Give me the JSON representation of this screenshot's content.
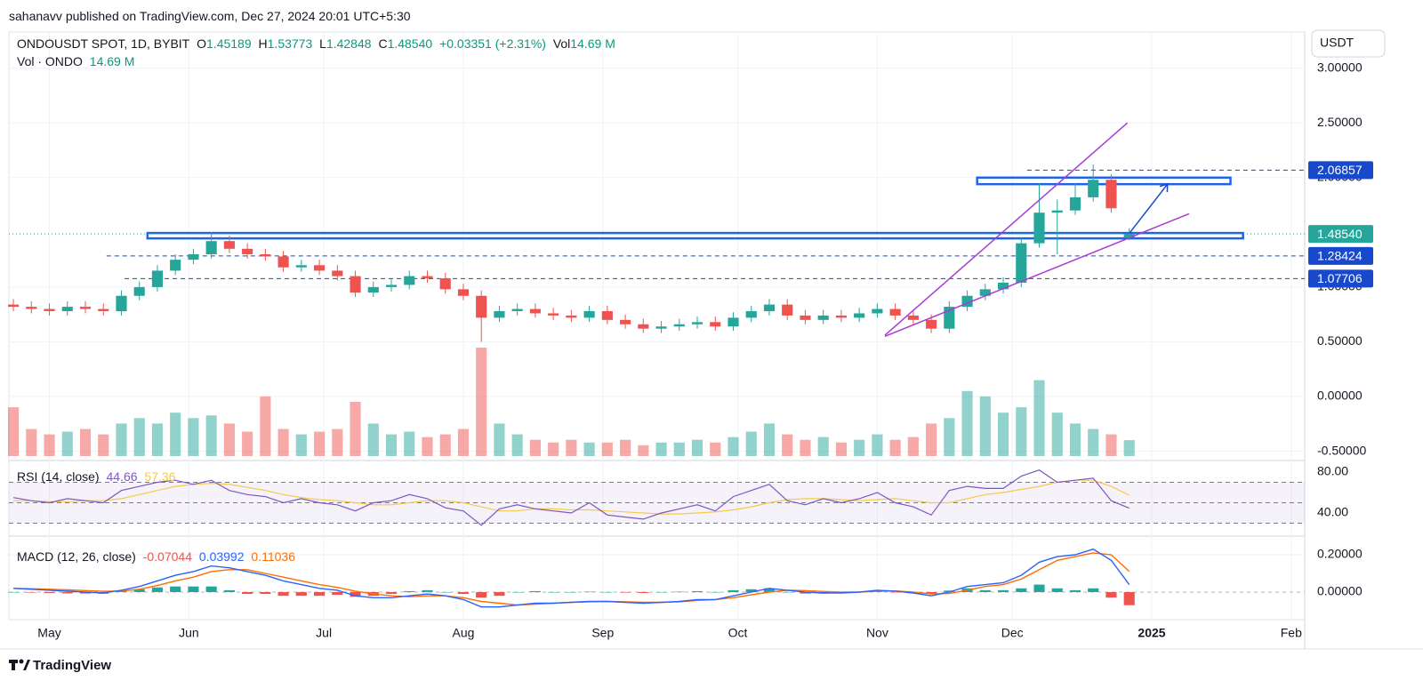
{
  "header": {
    "byline": "sahanavv published on TradingView.com, Dec 27, 2024 20:01 UTC+5:30"
  },
  "footer": {
    "brand": "TradingView"
  },
  "chart_data": {
    "type": "candlestick",
    "symbol": "ONDOUSDT SPOT, 1D, BYBIT",
    "ohlc_labels": [
      "O",
      "H",
      "L",
      "C"
    ],
    "change": "+0.03351 (+2.31%)",
    "vol_short": "Vol",
    "currency": "USDT",
    "up_color": "#26a69a",
    "down_color": "#ef5350",
    "grid": true,
    "xlim": [
      -1,
      287
    ],
    "xticks": [
      {
        "value": 8,
        "label": "May"
      },
      {
        "value": 39,
        "label": "Jun"
      },
      {
        "value": 69,
        "label": "Jul"
      },
      {
        "value": 100,
        "label": "Aug"
      },
      {
        "value": 131,
        "label": "Sep"
      },
      {
        "value": 161,
        "label": "Oct"
      },
      {
        "value": 192,
        "label": "Nov"
      },
      {
        "value": 222,
        "label": "Dec"
      },
      {
        "value": 253,
        "label": "2025"
      },
      {
        "value": 284,
        "label": "Feb"
      }
    ],
    "ylim": [
      -0.56,
      3.33
    ],
    "yticks": [
      {
        "value": 3,
        "label": "3.00000"
      },
      {
        "value": 2.5,
        "label": "2.50000"
      },
      {
        "value": 2,
        "label": "2.00000"
      },
      {
        "value": 1,
        "label": "1.00000"
      },
      {
        "value": 0.5,
        "label": "0.50000"
      },
      {
        "value": 0,
        "label": "0.00000"
      },
      {
        "value": -0.5,
        "label": "-0.50000"
      }
    ],
    "x": [
      0,
      4,
      8,
      12,
      16,
      20,
      24,
      28,
      32,
      36,
      40,
      44,
      48,
      52,
      56,
      60,
      64,
      68,
      72,
      76,
      80,
      84,
      88,
      92,
      96,
      100,
      104,
      108,
      112,
      116,
      120,
      124,
      128,
      132,
      136,
      140,
      144,
      148,
      152,
      156,
      160,
      164,
      168,
      172,
      176,
      180,
      184,
      188,
      192,
      196,
      200,
      204,
      208,
      212,
      216,
      220,
      224,
      228,
      232,
      236,
      240,
      244,
      248
    ],
    "open": [
      0.84,
      0.82,
      0.8,
      0.78,
      0.82,
      0.8,
      0.78,
      0.92,
      1.0,
      1.15,
      1.25,
      1.3,
      1.42,
      1.35,
      1.3,
      1.28,
      1.18,
      1.2,
      1.15,
      1.1,
      0.95,
      1.0,
      1.02,
      1.1,
      1.08,
      0.98,
      0.92,
      0.72,
      0.78,
      0.8,
      0.76,
      0.74,
      0.72,
      0.78,
      0.7,
      0.66,
      0.62,
      0.64,
      0.66,
      0.68,
      0.64,
      0.72,
      0.78,
      0.84,
      0.74,
      0.7,
      0.74,
      0.72,
      0.76,
      0.8,
      0.74,
      0.7,
      0.62,
      0.82,
      0.92,
      0.98,
      1.04,
      1.4,
      1.68,
      1.7,
      1.82,
      1.98,
      1.45189
    ],
    "high": [
      0.89,
      0.87,
      0.85,
      0.87,
      0.87,
      0.85,
      0.97,
      1.05,
      1.2,
      1.3,
      1.35,
      1.5,
      1.47,
      1.4,
      1.35,
      1.33,
      1.25,
      1.25,
      1.2,
      1.15,
      1.05,
      1.07,
      1.15,
      1.15,
      1.13,
      1.03,
      0.97,
      0.83,
      0.85,
      0.85,
      0.81,
      0.79,
      0.83,
      0.83,
      0.75,
      0.71,
      0.69,
      0.71,
      0.73,
      0.73,
      0.77,
      0.83,
      0.89,
      0.89,
      0.79,
      0.79,
      0.79,
      0.81,
      0.85,
      0.85,
      0.79,
      0.75,
      0.87,
      0.97,
      1.03,
      1.09,
      1.45,
      1.95,
      1.8,
      1.95,
      2.12,
      2.03,
      1.53773
    ],
    "low": [
      0.78,
      0.76,
      0.74,
      0.74,
      0.76,
      0.74,
      0.74,
      0.88,
      0.96,
      1.11,
      1.21,
      1.26,
      1.31,
      1.26,
      1.24,
      1.14,
      1.14,
      1.11,
      1.06,
      0.91,
      0.91,
      0.96,
      0.98,
      1.04,
      0.94,
      0.88,
      0.5,
      0.68,
      0.74,
      0.72,
      0.7,
      0.68,
      0.68,
      0.66,
      0.62,
      0.58,
      0.58,
      0.6,
      0.62,
      0.6,
      0.6,
      0.68,
      0.74,
      0.7,
      0.66,
      0.66,
      0.68,
      0.68,
      0.72,
      0.7,
      0.66,
      0.58,
      0.58,
      0.78,
      0.88,
      0.94,
      1.0,
      1.36,
      1.3,
      1.66,
      1.78,
      1.68,
      1.42848
    ],
    "close": [
      0.82,
      0.8,
      0.78,
      0.82,
      0.8,
      0.78,
      0.92,
      1.0,
      1.15,
      1.25,
      1.3,
      1.42,
      1.35,
      1.3,
      1.28,
      1.18,
      1.2,
      1.15,
      1.1,
      0.95,
      1.0,
      1.02,
      1.1,
      1.08,
      0.98,
      0.92,
      0.72,
      0.78,
      0.8,
      0.76,
      0.74,
      0.72,
      0.78,
      0.7,
      0.66,
      0.62,
      0.64,
      0.66,
      0.68,
      0.64,
      0.72,
      0.78,
      0.84,
      0.74,
      0.7,
      0.74,
      0.72,
      0.76,
      0.8,
      0.74,
      0.7,
      0.62,
      0.82,
      0.92,
      0.98,
      1.04,
      1.4,
      1.68,
      1.7,
      1.82,
      1.98,
      1.72,
      1.4854
    ],
    "last_price": {
      "value": 1.4854,
      "label": "1.48540",
      "color": "#26a69a"
    },
    "levels": [
      {
        "value": 2.06857,
        "x": 225.3
      },
      {
        "value": 1.28424,
        "x": 20.7
      },
      {
        "value": 1.07706,
        "x": 24.7
      }
    ],
    "level_color": "#1848cc",
    "zones": [
      {
        "x": [
          29.8,
          273.3
        ],
        "y": [
          1.445,
          1.494
        ]
      },
      {
        "x": [
          214.2,
          270.5
        ],
        "y": [
          1.94,
          2.0
        ]
      }
    ],
    "zone_color": "#1e63f0",
    "trendlines": [
      {
        "x": [
          193.7,
          247.6
        ],
        "y": [
          0.56,
          2.5
        ]
      },
      {
        "x": [
          193.7,
          261.3
        ],
        "y": [
          0.55,
          1.67
        ]
      }
    ],
    "trend_color": "#a93bd6",
    "arrow": {
      "x": [
        248,
        256.5
      ],
      "y": [
        1.49,
        1.94
      ],
      "color": "#1848cc"
    },
    "volume": {
      "label": "Vol · ONDO",
      "last_label": "14.69 M",
      "values": [
        45,
        25,
        20,
        22.5,
        25,
        20,
        30,
        35,
        30,
        40,
        35,
        37.5,
        30,
        22.5,
        55,
        25,
        20,
        22.5,
        25,
        50,
        30,
        20,
        22.5,
        17.5,
        20,
        25,
        100,
        30,
        20,
        15,
        12.5,
        15,
        12.5,
        12.5,
        15,
        10,
        12.5,
        12.5,
        15,
        12.5,
        17.5,
        22.5,
        30,
        20,
        15,
        17.5,
        12.5,
        15,
        20,
        15,
        17.5,
        30,
        35,
        60,
        55,
        40,
        45,
        70,
        40,
        30,
        25,
        20,
        14.69
      ]
    },
    "rsi": {
      "label": "RSI (14, close)",
      "color": "#7e57c2",
      "ma_color": "#f7c948",
      "ylim": [
        21.7,
        87.8
      ],
      "yticks": [
        {
          "value": 80,
          "label": "80.00"
        },
        {
          "value": 40,
          "label": "40.00"
        }
      ],
      "bands": [
        70,
        50,
        30
      ],
      "values": [
        55,
        52,
        50,
        54,
        52,
        50,
        62,
        66,
        70,
        72,
        68,
        72,
        62,
        58,
        56,
        50,
        54,
        50,
        48,
        42,
        50,
        52,
        58,
        54,
        45,
        42,
        28,
        44,
        48,
        44,
        42,
        40,
        50,
        38,
        36,
        34,
        40,
        44,
        48,
        42,
        56,
        62,
        68,
        52,
        48,
        54,
        50,
        54,
        60,
        50,
        46,
        38,
        62,
        66,
        64,
        64,
        76,
        82,
        70,
        72,
        74,
        52,
        44.66
      ],
      "ma": [
        52,
        52,
        51,
        51,
        52,
        52,
        54,
        58,
        62,
        66,
        68,
        69,
        68,
        65,
        62,
        58,
        55,
        53,
        52,
        50,
        48,
        48,
        50,
        52,
        52,
        50,
        46,
        42,
        42,
        44,
        44,
        43,
        43,
        42,
        41,
        40,
        39,
        39,
        40,
        41,
        43,
        46,
        50,
        53,
        54,
        54,
        53,
        52,
        53,
        54,
        52,
        50,
        50,
        54,
        58,
        60,
        63,
        66,
        70,
        72,
        72,
        66,
        57.36
      ]
    },
    "macd": {
      "label": "MACD (12, 26, close)",
      "color": "#2962ff",
      "signal_color": "#ff6d00",
      "hist_up": "#26a69a",
      "hist_down": "#ef5350",
      "ylim": [
        -0.148,
        0.286
      ],
      "yticks": [
        {
          "value": 0.2,
          "label": "0.20000"
        },
        {
          "value": 0,
          "label": "0.00000"
        }
      ],
      "histogram": [
        0,
        -0.003,
        -0.005,
        -0.007,
        -0.008,
        -0.009,
        0.005,
        0.015,
        0.025,
        0.03,
        0.03,
        0.03,
        0.01,
        -0.01,
        -0.01,
        -0.02,
        -0.02,
        -0.02,
        -0.015,
        -0.025,
        -0.02,
        -0.01,
        0.005,
        0.01,
        0,
        -0.01,
        -0.03,
        -0.02,
        0,
        0.005,
        0,
        0,
        0.002,
        0,
        -0.003,
        -0.005,
        0,
        0.002,
        0.005,
        0,
        0.01,
        0.015,
        0.02,
        0,
        -0.008,
        -0.008,
        -0.005,
        0,
        0.005,
        -0.001,
        -0.005,
        -0.01,
        0.008,
        0.02,
        0.01,
        0.01,
        0.02,
        0.04,
        0.02,
        0.01,
        0.02,
        -0.03,
        -0.07044
      ],
      "values": [
        0.02,
        0.015,
        0.01,
        0.005,
        0.0,
        -0.005,
        0.01,
        0.03,
        0.06,
        0.09,
        0.11,
        0.14,
        0.13,
        0.11,
        0.09,
        0.06,
        0.04,
        0.02,
        0.01,
        -0.02,
        -0.03,
        -0.03,
        -0.02,
        -0.01,
        -0.02,
        -0.04,
        -0.08,
        -0.08,
        -0.07,
        -0.06,
        -0.06,
        -0.055,
        -0.05,
        -0.05,
        -0.055,
        -0.06,
        -0.055,
        -0.05,
        -0.04,
        -0.04,
        -0.02,
        0.0,
        0.02,
        0.01,
        0.0,
        -0.005,
        -0.005,
        0.0,
        0.01,
        0.005,
        -0.005,
        -0.02,
        0.0,
        0.03,
        0.04,
        0.05,
        0.09,
        0.16,
        0.19,
        0.2,
        0.23,
        0.17,
        0.03992
      ],
      "signal": [
        0.02,
        0.018,
        0.015,
        0.012,
        0.008,
        0.004,
        0.005,
        0.015,
        0.035,
        0.06,
        0.08,
        0.11,
        0.12,
        0.12,
        0.1,
        0.08,
        0.06,
        0.04,
        0.025,
        0.005,
        -0.01,
        -0.02,
        -0.025,
        -0.02,
        -0.02,
        -0.03,
        -0.05,
        -0.06,
        -0.07,
        -0.065,
        -0.06,
        -0.055,
        -0.052,
        -0.05,
        -0.052,
        -0.055,
        -0.055,
        -0.052,
        -0.045,
        -0.04,
        -0.03,
        -0.015,
        0.0,
        0.01,
        0.008,
        0.003,
        0.0,
        0.0,
        0.005,
        0.006,
        0.0,
        -0.01,
        -0.008,
        0.01,
        0.03,
        0.04,
        0.07,
        0.12,
        0.17,
        0.19,
        0.21,
        0.2,
        0.11036
      ]
    }
  }
}
